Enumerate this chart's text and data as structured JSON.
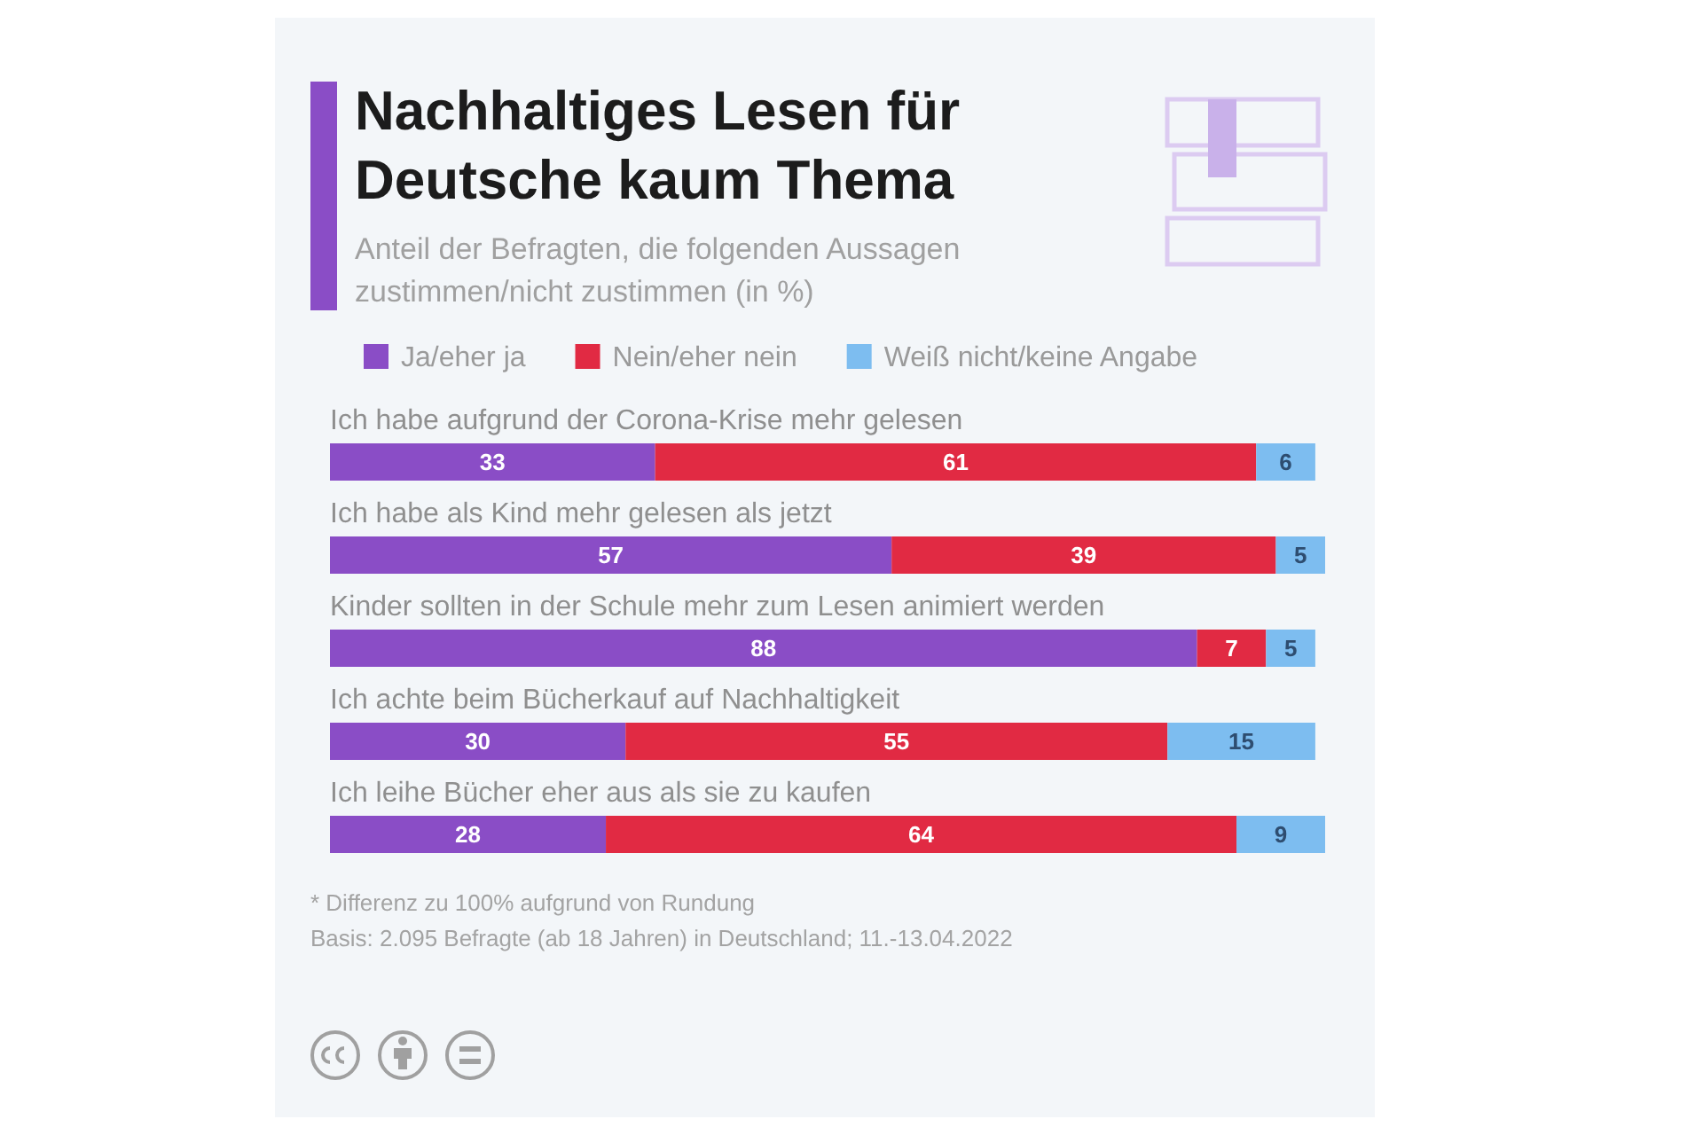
{
  "chart_data": {
    "type": "bar",
    "orientation": "horizontal",
    "stacked": true,
    "data_labels": true,
    "legend": "top",
    "title": "Nachhaltiges Lesen für Deutsche kaum Thema",
    "subtitle": "Anteil der Befragten, die folgenden Aussagen zustimmen/nicht zustimmen (in %)",
    "categories": [
      "Ich habe aufgrund der Corona-Krise mehr gelesen",
      "Ich habe als Kind mehr gelesen als jetzt",
      "Kinder sollten in der Schule mehr zum Lesen animiert werden",
      "Ich achte beim Bücherkauf auf Nachhaltigkeit",
      "Ich leihe Bücher eher aus als sie zu kaufen"
    ],
    "series": [
      {
        "name": "Ja/eher ja",
        "color": "#8a4dc6",
        "values": [
          33,
          57,
          88,
          30,
          28
        ]
      },
      {
        "name": "Nein/eher nein",
        "color": "#e12a43",
        "values": [
          61,
          39,
          7,
          55,
          64
        ]
      },
      {
        "name": "Weiß nicht/keine Angabe",
        "color": "#7dbdf0",
        "values": [
          6,
          5,
          5,
          15,
          9
        ]
      }
    ],
    "annotations": [
      "* Differenz zu 100% aufgrund von Rundung",
      "Basis: 2.095 Befragte (ab 18 Jahren) in Deutschland; 11.-13.04.2022"
    ]
  }
}
